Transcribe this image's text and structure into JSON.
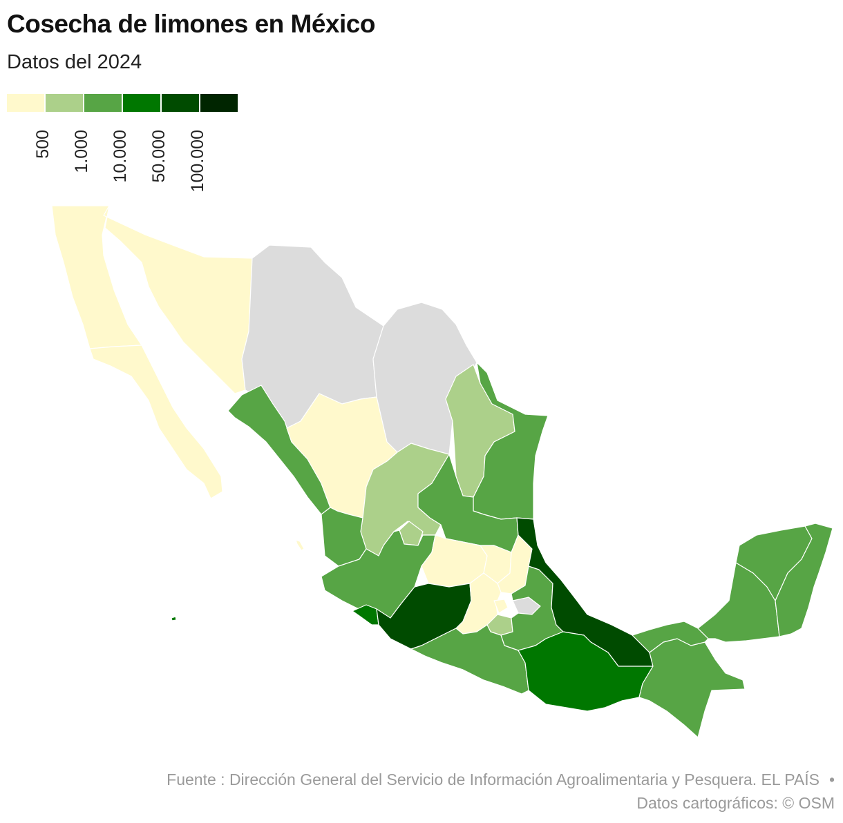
{
  "title": "Cosecha de limones en México",
  "subtitle": "Datos del 2024",
  "legend": {
    "colors": [
      "#fff9cc",
      "#acd08a",
      "#57a545",
      "#007700",
      "#004b00",
      "#002500"
    ],
    "ticks": [
      "500",
      "1.000",
      "10.000",
      "50.000",
      "100.000"
    ]
  },
  "no_data_color": "#dcdcdc",
  "source": {
    "line1": "Fuente : Dirección General del Servicio de Información Agroalimentaria y Pesquera. EL PAÍS",
    "separator": "•",
    "line2": "Datos cartográficos: © OSM"
  }
}
